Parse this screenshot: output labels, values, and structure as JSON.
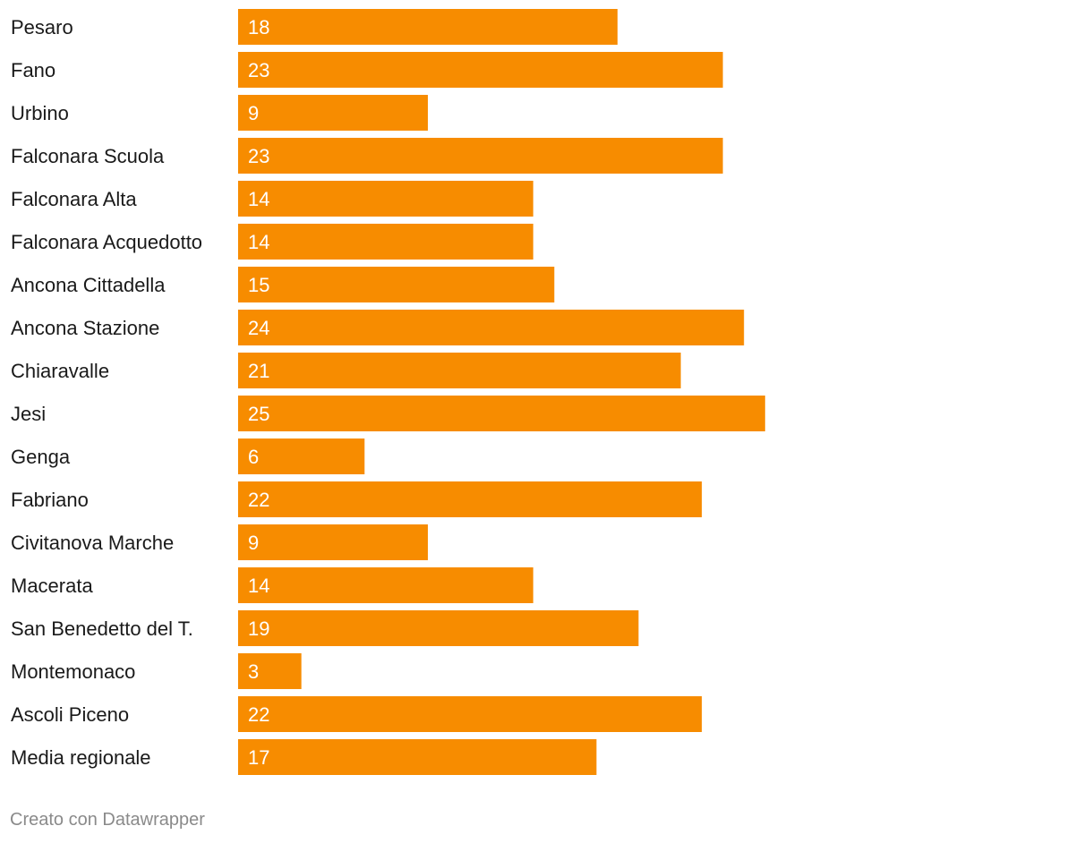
{
  "chart_data": {
    "type": "bar",
    "orientation": "horizontal",
    "categories": [
      "Pesaro",
      "Fano",
      "Urbino",
      "Falconara Scuola",
      "Falconara Alta",
      "Falconara Acquedotto",
      "Ancona Cittadella",
      "Ancona Stazione",
      "Chiaravalle",
      "Jesi",
      "Genga",
      "Fabriano",
      "Civitanova Marche",
      "Macerata",
      "San Benedetto del T.",
      "Montemonaco",
      "Ascoli Piceno",
      "Media regionale"
    ],
    "values": [
      18,
      23,
      9,
      23,
      14,
      14,
      15,
      24,
      21,
      25,
      6,
      22,
      9,
      14,
      19,
      3,
      22,
      17
    ],
    "bar_color": "#f78c00",
    "value_label_color": "#ffffff",
    "grid": false,
    "xlim": [
      0,
      25
    ]
  },
  "footer": {
    "credit": "Creato con Datawrapper"
  }
}
